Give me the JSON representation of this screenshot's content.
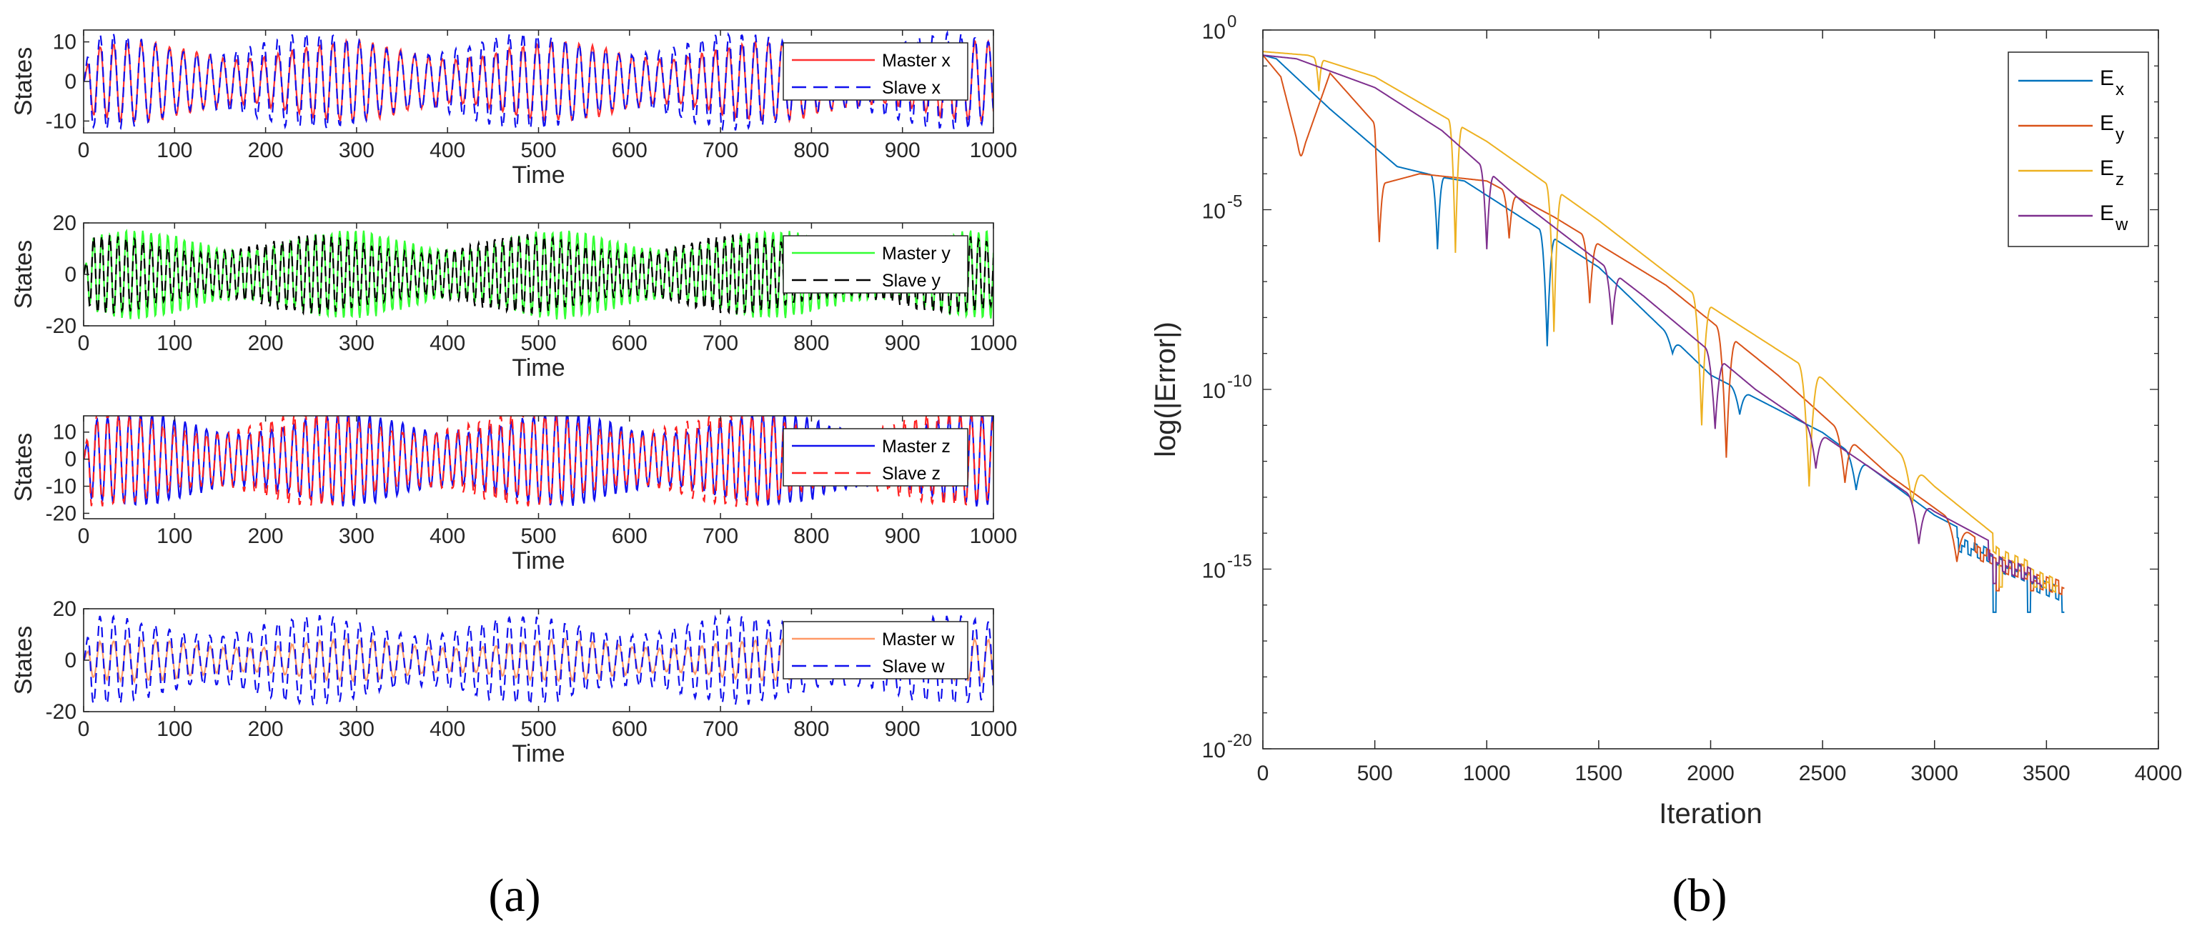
{
  "chart_data": [
    {
      "panel": "a",
      "type": "line",
      "subplots": [
        {
          "id": "x",
          "ylabel": "States",
          "xlabel": "Time",
          "xlim": [
            0,
            1000
          ],
          "ylim": [
            -13,
            13
          ],
          "xticks": [
            0,
            100,
            200,
            300,
            400,
            500,
            600,
            700,
            800,
            900,
            1000
          ],
          "yticks": [
            -10,
            0,
            10
          ],
          "series": [
            {
              "name": "Master x",
              "color": "#ff3030",
              "style": "solid",
              "amplitude": 10,
              "period": 15
            },
            {
              "name": "Slave x",
              "color": "#1010ee",
              "style": "dashed",
              "amplitude": 12,
              "period": 15
            }
          ]
        },
        {
          "id": "y",
          "ylabel": "States",
          "xlabel": "Time",
          "xlim": [
            0,
            1000
          ],
          "ylim": [
            -20,
            20
          ],
          "xticks": [
            0,
            100,
            200,
            300,
            400,
            500,
            600,
            700,
            800,
            900,
            1000
          ],
          "yticks": [
            -20,
            0,
            20
          ],
          "series": [
            {
              "name": "Master y",
              "color": "#33ff33",
              "style": "solid",
              "amplitude": 17,
              "period": 9
            },
            {
              "name": "Slave y",
              "color": "#000000",
              "style": "dashed",
              "amplitude": 15,
              "period": 9
            }
          ]
        },
        {
          "id": "z",
          "ylabel": "States",
          "xlabel": "Time",
          "xlim": [
            0,
            1000
          ],
          "ylim": [
            -22,
            16
          ],
          "xticks": [
            0,
            100,
            200,
            300,
            400,
            500,
            600,
            700,
            800,
            900,
            1000
          ],
          "yticks": [
            -20,
            -10,
            0,
            10
          ],
          "series": [
            {
              "name": "Master z",
              "color": "#1010ee",
              "style": "solid",
              "amplitude": 17,
              "period": 12
            },
            {
              "name": "Slave z",
              "color": "#ff2020",
              "style": "dashed",
              "amplitude": 17,
              "period": 12
            }
          ]
        },
        {
          "id": "w",
          "ylabel": "States",
          "xlabel": "Time",
          "xlim": [
            0,
            1000
          ],
          "ylim": [
            -20,
            20
          ],
          "xticks": [
            0,
            100,
            200,
            300,
            400,
            500,
            600,
            700,
            800,
            900,
            1000
          ],
          "yticks": [
            -20,
            0,
            20
          ],
          "series": [
            {
              "name": "Master w",
              "color": "#ff9966",
              "style": "solid",
              "amplitude": 8,
              "period": 15
            },
            {
              "name": "Slave w",
              "color": "#1010ee",
              "style": "dashed",
              "amplitude": 17,
              "period": 15
            }
          ]
        }
      ]
    },
    {
      "panel": "b",
      "type": "line",
      "yscale": "log",
      "xlabel": "Iteration",
      "ylabel": "log(|Error|)",
      "xlim": [
        0,
        4000
      ],
      "ylim_exp": [
        -20,
        0
      ],
      "xticks": [
        0,
        500,
        1000,
        1500,
        2000,
        2500,
        3000,
        3500,
        4000
      ],
      "yticks": [
        {
          "base": "10",
          "exp": "0"
        },
        {
          "base": "10",
          "exp": "-5"
        },
        {
          "base": "10",
          "exp": "-10"
        },
        {
          "base": "10",
          "exp": "-15"
        },
        {
          "base": "10",
          "exp": "-20"
        }
      ],
      "series": [
        {
          "name": "E",
          "sub": "x",
          "color": "#0072bd",
          "envelope": [
            [
              0,
              -0.7
            ],
            [
              60,
              -0.8
            ],
            [
              300,
              -2.2
            ],
            [
              600,
              -3.8
            ],
            [
              800,
              -4.1
            ],
            [
              900,
              -4.2
            ],
            [
              1100,
              -5.0
            ],
            [
              1500,
              -6.6
            ],
            [
              2000,
              -9.6
            ],
            [
              2500,
              -11.2
            ],
            [
              3000,
              -13.5
            ],
            [
              3400,
              -14.8
            ],
            [
              3580,
              -15.4
            ]
          ],
          "dips": [
            [
              780,
              -6.1
            ],
            [
              1270,
              -8.8
            ],
            [
              1830,
              -9.0
            ],
            [
              2130,
              -10.7
            ],
            [
              2650,
              -12.8
            ]
          ],
          "noise_start": 3100,
          "noise_low": -16.2
        },
        {
          "name": "E",
          "sub": "y",
          "color": "#d95319",
          "envelope": [
            [
              0,
              -0.7
            ],
            [
              80,
              -1.3
            ],
            [
              170,
              -3.5
            ],
            [
              300,
              -1.2
            ],
            [
              500,
              -2.6
            ],
            [
              520,
              -4.3
            ],
            [
              700,
              -4.0
            ],
            [
              1000,
              -4.2
            ],
            [
              1300,
              -5.2
            ],
            [
              1800,
              -7.1
            ],
            [
              2300,
              -9.6
            ],
            [
              2800,
              -12.4
            ],
            [
              3200,
              -14.2
            ],
            [
              3580,
              -15.2
            ]
          ],
          "dips": [
            [
              170,
              -3.5
            ],
            [
              520,
              -5.9
            ],
            [
              1100,
              -5.8
            ],
            [
              1460,
              -7.6
            ],
            [
              2070,
              -11.9
            ],
            [
              2600,
              -12.6
            ],
            [
              3100,
              -14.8
            ]
          ],
          "noise_start": 3180,
          "noise_low": -15.6
        },
        {
          "name": "E",
          "sub": "z",
          "color": "#edb120",
          "envelope": [
            [
              0,
              -0.6
            ],
            [
              200,
              -0.7
            ],
            [
              500,
              -1.3
            ],
            [
              1000,
              -3.1
            ],
            [
              1500,
              -5.3
            ],
            [
              2000,
              -7.7
            ],
            [
              2500,
              -9.7
            ],
            [
              3000,
              -12.7
            ],
            [
              3300,
              -14.2
            ],
            [
              3550,
              -15.1
            ]
          ],
          "dips": [
            [
              250,
              -1.7
            ],
            [
              860,
              -6.2
            ],
            [
              1300,
              -8.4
            ],
            [
              1960,
              -11.0
            ],
            [
              2440,
              -12.7
            ],
            [
              2900,
              -13.2
            ]
          ],
          "noise_start": 3260,
          "noise_low": -15.5
        },
        {
          "name": "E",
          "sub": "w",
          "color": "#7e2f8e",
          "envelope": [
            [
              0,
              -0.7
            ],
            [
              150,
              -0.8
            ],
            [
              500,
              -1.6
            ],
            [
              800,
              -2.8
            ],
            [
              1200,
              -5.0
            ],
            [
              1700,
              -7.4
            ],
            [
              2200,
              -10.0
            ],
            [
              2600,
              -11.7
            ],
            [
              3000,
              -13.4
            ],
            [
              3300,
              -14.4
            ],
            [
              3480,
              -15.0
            ]
          ],
          "dips": [
            [
              1000,
              -6.1
            ],
            [
              1560,
              -8.2
            ],
            [
              2020,
              -11.1
            ],
            [
              2470,
              -12.2
            ],
            [
              2930,
              -14.3
            ]
          ],
          "noise_start": 3240,
          "noise_low": -15.4
        }
      ]
    }
  ],
  "captions": {
    "a": "(a)",
    "b": "(b)"
  }
}
